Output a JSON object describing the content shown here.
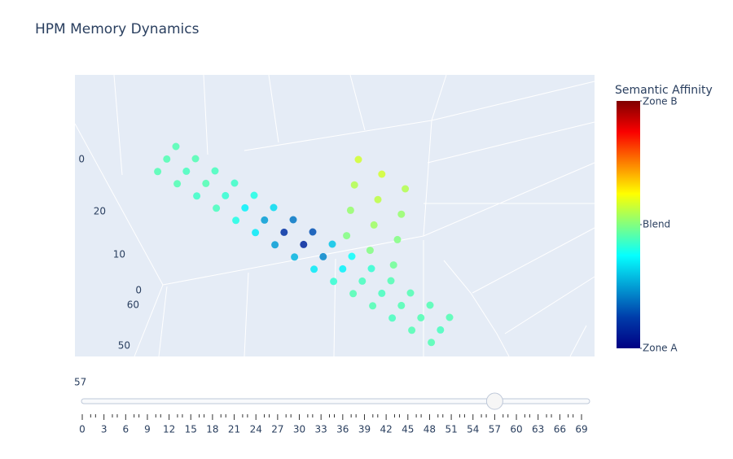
{
  "chart_data": {
    "type": "scatter3d",
    "title": "HPM Memory Dynamics",
    "x": [
      0,
      0,
      0,
      5,
      5,
      5,
      10,
      10,
      10,
      15,
      15,
      15,
      20,
      20,
      20,
      25,
      25,
      25,
      30,
      30,
      30,
      35,
      35,
      35,
      40,
      40,
      40,
      45,
      45,
      45,
      50,
      50,
      50,
      55,
      55,
      55,
      60,
      60,
      60,
      65,
      65,
      65,
      70,
      70,
      70,
      44,
      44,
      44,
      44,
      50,
      50,
      50,
      50,
      56,
      56,
      56,
      56
    ],
    "y": [
      0,
      7,
      14,
      0,
      7,
      14,
      0,
      7,
      14,
      0,
      7,
      14,
      0,
      7,
      14,
      0,
      7,
      14,
      0,
      7,
      14,
      0,
      7,
      14,
      0,
      7,
      14,
      0,
      7,
      14,
      0,
      7,
      14,
      0,
      7,
      14,
      0,
      7,
      14,
      0,
      7,
      14,
      0,
      7,
      14,
      4,
      4,
      4,
      4,
      4,
      4,
      4,
      4,
      4,
      4,
      4,
      4
    ],
    "z": [
      0,
      0,
      0,
      0,
      0,
      0,
      0,
      0,
      0,
      0,
      0,
      0,
      0,
      0,
      0,
      0,
      0,
      0,
      0,
      0,
      0,
      0,
      0,
      0,
      0,
      0,
      0,
      0,
      0,
      0,
      0,
      0,
      0,
      0,
      0,
      0,
      0,
      0,
      0,
      0,
      0,
      0,
      0,
      0,
      0,
      8,
      16,
      24,
      32,
      8,
      16,
      24,
      32,
      8,
      16,
      24,
      32
    ],
    "values": [
      0.45,
      0.45,
      0.45,
      0.45,
      0.44,
      0.45,
      0.44,
      0.45,
      0.43,
      0.43,
      0.42,
      0.44,
      0.4,
      0.36,
      0.4,
      0.33,
      0.25,
      0.35,
      0.2,
      0.1,
      0.25,
      0.15,
      0.08,
      0.28,
      0.3,
      0.22,
      0.35,
      0.38,
      0.36,
      0.42,
      0.42,
      0.44,
      0.45,
      0.45,
      0.44,
      0.45,
      0.45,
      0.45,
      0.44,
      0.45,
      0.45,
      0.45,
      0.45,
      0.44,
      0.45,
      0.5,
      0.52,
      0.55,
      0.58,
      0.5,
      0.53,
      0.56,
      0.58,
      0.48,
      0.5,
      0.52,
      0.55
    ],
    "clim": [
      0,
      1
    ],
    "colorscale": [
      [
        0,
        "#000083"
      ],
      [
        0.125,
        "#003caa"
      ],
      [
        0.375,
        "#05ffff"
      ],
      [
        0.625,
        "#ffff00"
      ],
      [
        0.875,
        "#fa0000"
      ],
      [
        1,
        "#800000"
      ]
    ],
    "colorbar": {
      "title": "Semantic Affinity",
      "ticks": [
        {
          "value": 0,
          "label": "Zone A"
        },
        {
          "value": 0.5,
          "label": "Blend"
        },
        {
          "value": 1,
          "label": "Zone B"
        }
      ]
    },
    "scene": {
      "xticks": [
        0
      ],
      "zticks": [
        20,
        10,
        0
      ],
      "yticks": [
        60,
        50
      ]
    },
    "slider": {
      "active": 57,
      "range": [
        0,
        69
      ],
      "ticks": [
        0,
        3,
        6,
        9,
        12,
        15,
        18,
        21,
        24,
        27,
        30,
        33,
        36,
        39,
        42,
        45,
        48,
        51,
        54,
        57,
        60,
        63,
        66,
        69
      ]
    }
  }
}
